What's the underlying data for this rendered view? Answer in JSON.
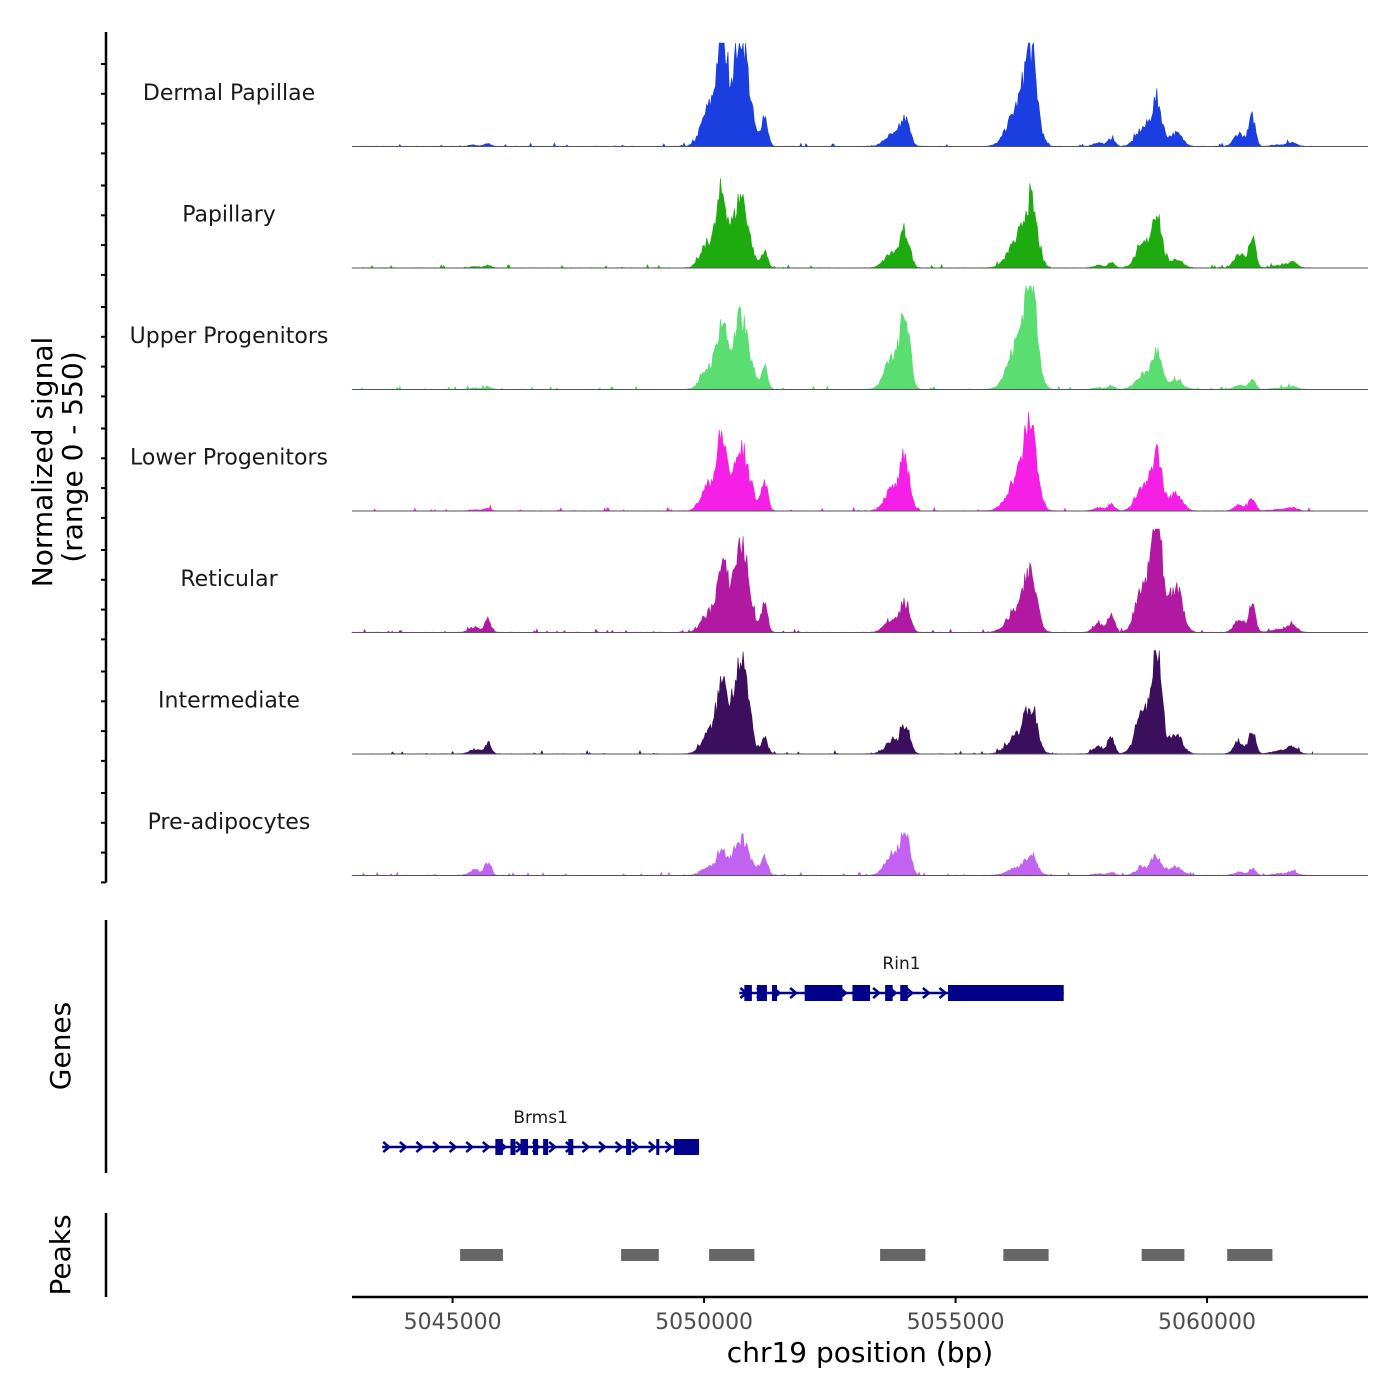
{
  "chart_data": {
    "type": "area",
    "title": "",
    "ylabel": "Normalized signal",
    "ylabel_range": "(range 0 - 550)",
    "xlabel": "chr19 position (bp)",
    "xlim": [
      5043000,
      5063200
    ],
    "ylim": [
      0,
      550
    ],
    "x_ticks": [
      {
        "value": 5045000,
        "label": "5045000"
      },
      {
        "value": 5050000,
        "label": "5050000"
      },
      {
        "value": 5055000,
        "label": "5055000"
      },
      {
        "value": 5060000,
        "label": "5060000"
      }
    ],
    "signal_range": [
      5043000,
      5062100
    ],
    "peak_centers": [
      5045700,
      5050350,
      5050750,
      5051200,
      5054000,
      5056500,
      5058100,
      5059000,
      5059400,
      5060900,
      5061700
    ],
    "series": [
      {
        "name": "Dermal Papillae",
        "color": "#1a3ee0",
        "values": [
          15,
          420,
          530,
          170,
          140,
          460,
          45,
          220,
          60,
          160,
          20
        ]
      },
      {
        "name": "Papillary",
        "color": "#1eab10",
        "values": [
          15,
          280,
          330,
          90,
          180,
          320,
          30,
          280,
          40,
          180,
          30
        ]
      },
      {
        "name": "Upper Progenitors",
        "color": "#5ade72",
        "values": [
          15,
          240,
          320,
          130,
          380,
          550,
          20,
          180,
          40,
          50,
          15
        ]
      },
      {
        "name": "Lower Progenitors",
        "color": "#f51fe6",
        "values": [
          15,
          290,
          270,
          160,
          270,
          420,
          40,
          280,
          80,
          70,
          20
        ]
      },
      {
        "name": "Reticular",
        "color": "#b119a3",
        "values": [
          65,
          200,
          410,
          150,
          150,
          280,
          100,
          550,
          200,
          160,
          40
        ]
      },
      {
        "name": "Intermediate",
        "color": "#3b0f5e",
        "values": [
          55,
          220,
          460,
          80,
          140,
          230,
          90,
          520,
          90,
          140,
          40
        ]
      },
      {
        "name": "Pre-adipocytes",
        "color": "#c162f0",
        "values": [
          70,
          80,
          150,
          100,
          230,
          90,
          20,
          90,
          40,
          40,
          20
        ]
      }
    ],
    "genes": [
      {
        "name": "Brms1",
        "color": "#00008b",
        "strand": "+",
        "start": 5043600,
        "end": 5049900,
        "exons": [
          [
            5045850,
            5046000
          ],
          [
            5046150,
            5046250
          ],
          [
            5046350,
            5046500
          ],
          [
            5046600,
            5046700
          ],
          [
            5046800,
            5046900
          ],
          [
            5047300,
            5047400
          ],
          [
            5048450,
            5048550
          ],
          [
            5049050,
            5049100
          ],
          [
            5049400,
            5049900
          ]
        ]
      },
      {
        "name": "Rin1",
        "color": "#00008b",
        "strand": "+",
        "start": 5050700,
        "end": 5057150,
        "exons": [
          [
            5050800,
            5050950
          ],
          [
            5051050,
            5051250
          ],
          [
            5051350,
            5051450
          ],
          [
            5052000,
            5052750
          ],
          [
            5052950,
            5053300
          ],
          [
            5053600,
            5053750
          ],
          [
            5053900,
            5054050
          ],
          [
            5054850,
            5057150
          ]
        ]
      }
    ],
    "peaks": [
      {
        "start": 5045150,
        "end": 5046000
      },
      {
        "start": 5048350,
        "end": 5049100
      },
      {
        "start": 5050100,
        "end": 5051000
      },
      {
        "start": 5053500,
        "end": 5054400
      },
      {
        "start": 5055950,
        "end": 5056850
      },
      {
        "start": 5058700,
        "end": 5059550
      },
      {
        "start": 5060400,
        "end": 5061300
      }
    ],
    "peaks_color": "#666666"
  },
  "panels": {
    "signal_title": "Normalized signal",
    "genes_title": "Genes",
    "peaks_title": "Peaks"
  }
}
